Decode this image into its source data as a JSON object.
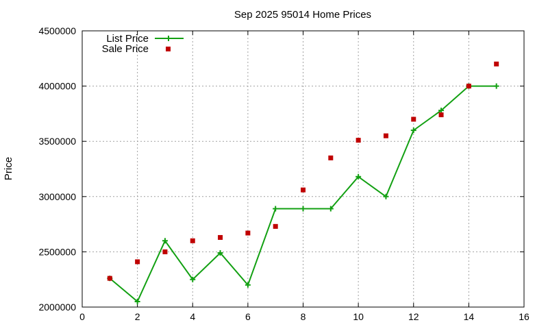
{
  "chart_data": {
    "type": "line",
    "title": "Sep 2025 95014 Home Prices",
    "xlabel": "",
    "ylabel": "Price",
    "xlim": [
      0,
      16
    ],
    "ylim": [
      2000000,
      4500000
    ],
    "xticks": [
      0,
      2,
      4,
      6,
      8,
      10,
      12,
      14,
      16
    ],
    "yticks": [
      2000000,
      2500000,
      3000000,
      3500000,
      4000000,
      4500000
    ],
    "xtick_labels": [
      "0",
      "2",
      "4",
      "6",
      "8",
      "10",
      "12",
      "14",
      "16"
    ],
    "ytick_labels": [
      "2000000",
      "2500000",
      "3000000",
      "3500000",
      "4000000",
      "4500000"
    ],
    "grid": true,
    "legend_position": "top-left",
    "series": [
      {
        "name": "List Price",
        "style": "line-with-plus-markers",
        "color": "#12a012",
        "x": [
          1,
          2,
          3,
          4,
          5,
          6,
          7,
          8,
          9,
          10,
          11,
          12,
          13,
          14,
          15
        ],
        "y": [
          2260000,
          2050000,
          2600000,
          2250000,
          2490000,
          2200000,
          2890000,
          2890000,
          2890000,
          3180000,
          3000000,
          3600000,
          3780000,
          4000000,
          4000000
        ]
      },
      {
        "name": "Sale Price",
        "style": "square-markers",
        "color": "#c00000",
        "x": [
          1,
          2,
          3,
          4,
          5,
          6,
          7,
          8,
          9,
          10,
          11,
          12,
          13,
          14,
          15
        ],
        "y": [
          2260000,
          2410000,
          2500000,
          2600000,
          2630000,
          2670000,
          2730000,
          3060000,
          3350000,
          3510000,
          3550000,
          3700000,
          3740000,
          4000000,
          4200000
        ]
      }
    ]
  }
}
